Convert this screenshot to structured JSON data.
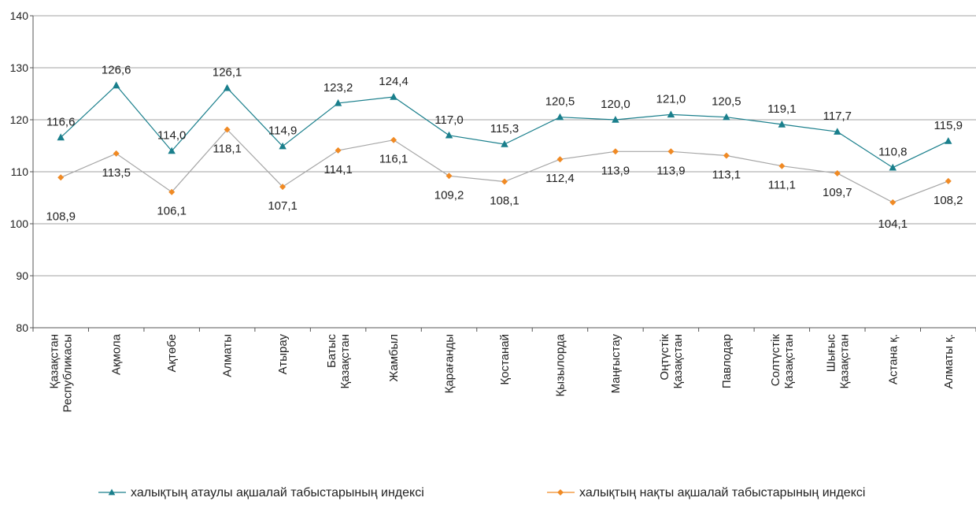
{
  "chart_data": {
    "type": "line",
    "title": "",
    "xlabel": "",
    "ylabel": "",
    "ylim": [
      80,
      140
    ],
    "yticks": [
      80,
      90,
      100,
      110,
      120,
      130,
      140
    ],
    "grid": true,
    "legend_position": "bottom",
    "categories": [
      [
        "Қазақстан",
        "Республикасы"
      ],
      [
        "Ақмола"
      ],
      [
        "Ақтөбе"
      ],
      [
        "Алматы"
      ],
      [
        "Атырау"
      ],
      [
        "Батыс",
        "Қазақстан"
      ],
      [
        "Жамбыл"
      ],
      [
        "Қарағанды"
      ],
      [
        "Қостанай"
      ],
      [
        "Қызылорда"
      ],
      [
        "Маңғыстау"
      ],
      [
        "Оңтүстік",
        "Қазақстан"
      ],
      [
        "Павлодар"
      ],
      [
        "Солтүстік",
        "Қазақстан"
      ],
      [
        "Шығыс",
        "Қазақстан"
      ],
      [
        "Астана  қ."
      ],
      [
        "Алматы қ."
      ]
    ],
    "series": [
      {
        "name": "халықтың атаулы ақшалай табыстарының индексі",
        "color": "#1a7f8c",
        "marker": "triangle",
        "values": [
          116.6,
          126.6,
          114.0,
          126.1,
          114.9,
          123.2,
          124.4,
          117.0,
          115.3,
          120.5,
          120.0,
          121.0,
          120.5,
          119.1,
          117.7,
          110.8,
          115.9
        ],
        "data_labels": [
          "116,6",
          "126,6",
          "114,0",
          "126,1",
          "114,9",
          "123,2",
          "124,4",
          "117,0",
          "115,3",
          "120,5",
          "120,0",
          "121,0",
          "120,5",
          "119,1",
          "117,7",
          "110,8",
          "115,9"
        ]
      },
      {
        "name": "халықтың нақты ақшалай табыстарының индексі",
        "color": "#f08a24",
        "line_color": "#a6a6a6",
        "marker": "diamond",
        "values": [
          108.9,
          113.5,
          106.1,
          118.1,
          107.1,
          114.1,
          116.1,
          109.2,
          108.1,
          112.4,
          113.9,
          113.9,
          113.1,
          111.1,
          109.7,
          104.1,
          108.2
        ],
        "data_labels": [
          "108,9",
          "113,5",
          "106,1",
          "118,1",
          "107,1",
          "114,1",
          "116,1",
          "109,2",
          "108,1",
          "112,4",
          "113,9",
          "113,9",
          "113,1",
          "111,1",
          "109,7",
          "104,1",
          "108,2"
        ]
      }
    ]
  }
}
